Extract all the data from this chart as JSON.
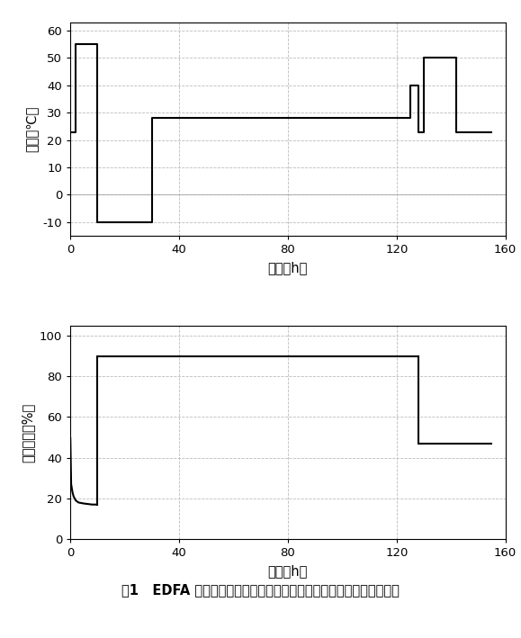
{
  "temp_x": [
    0,
    2,
    2,
    10,
    10,
    30,
    30,
    125,
    125,
    128,
    128,
    130,
    130,
    142,
    142,
    155
  ],
  "temp_y": [
    23,
    23,
    55,
    55,
    -10,
    -10,
    28,
    28,
    40,
    40,
    23,
    23,
    50,
    50,
    23,
    23
  ],
  "temp_ylim": [
    -15,
    63
  ],
  "temp_yticks": [
    -10,
    0,
    10,
    20,
    30,
    40,
    50,
    60
  ],
  "temp_ylabel": "温度（℃）",
  "temp_xlabel": "时间（h）",
  "hum_x": [
    0,
    0.3,
    0.8,
    1.2,
    2,
    3,
    5,
    8,
    10,
    10,
    40,
    128,
    128,
    130,
    155
  ],
  "hum_y": [
    50,
    27,
    23,
    21,
    19,
    18,
    17.5,
    17,
    17,
    90,
    90,
    90,
    47,
    47,
    47
  ],
  "hum_ylim": [
    0,
    105
  ],
  "hum_yticks": [
    0,
    20,
    40,
    60,
    80,
    100
  ],
  "hum_ylabel": "相对湿度（%）",
  "hum_xlabel": "时间（h）",
  "xlim": [
    0,
    160
  ],
  "xticks": [
    0,
    40,
    80,
    120,
    160
  ],
  "line_color": "#000000",
  "grid_color": "#bbbbbb",
  "bg_color": "#ffffff",
  "caption": "图1   EDFA 单元在工作温度和湿度试验中温度和相对湿度随时间的变化",
  "border_color": "#000000",
  "font_size": 10.5
}
